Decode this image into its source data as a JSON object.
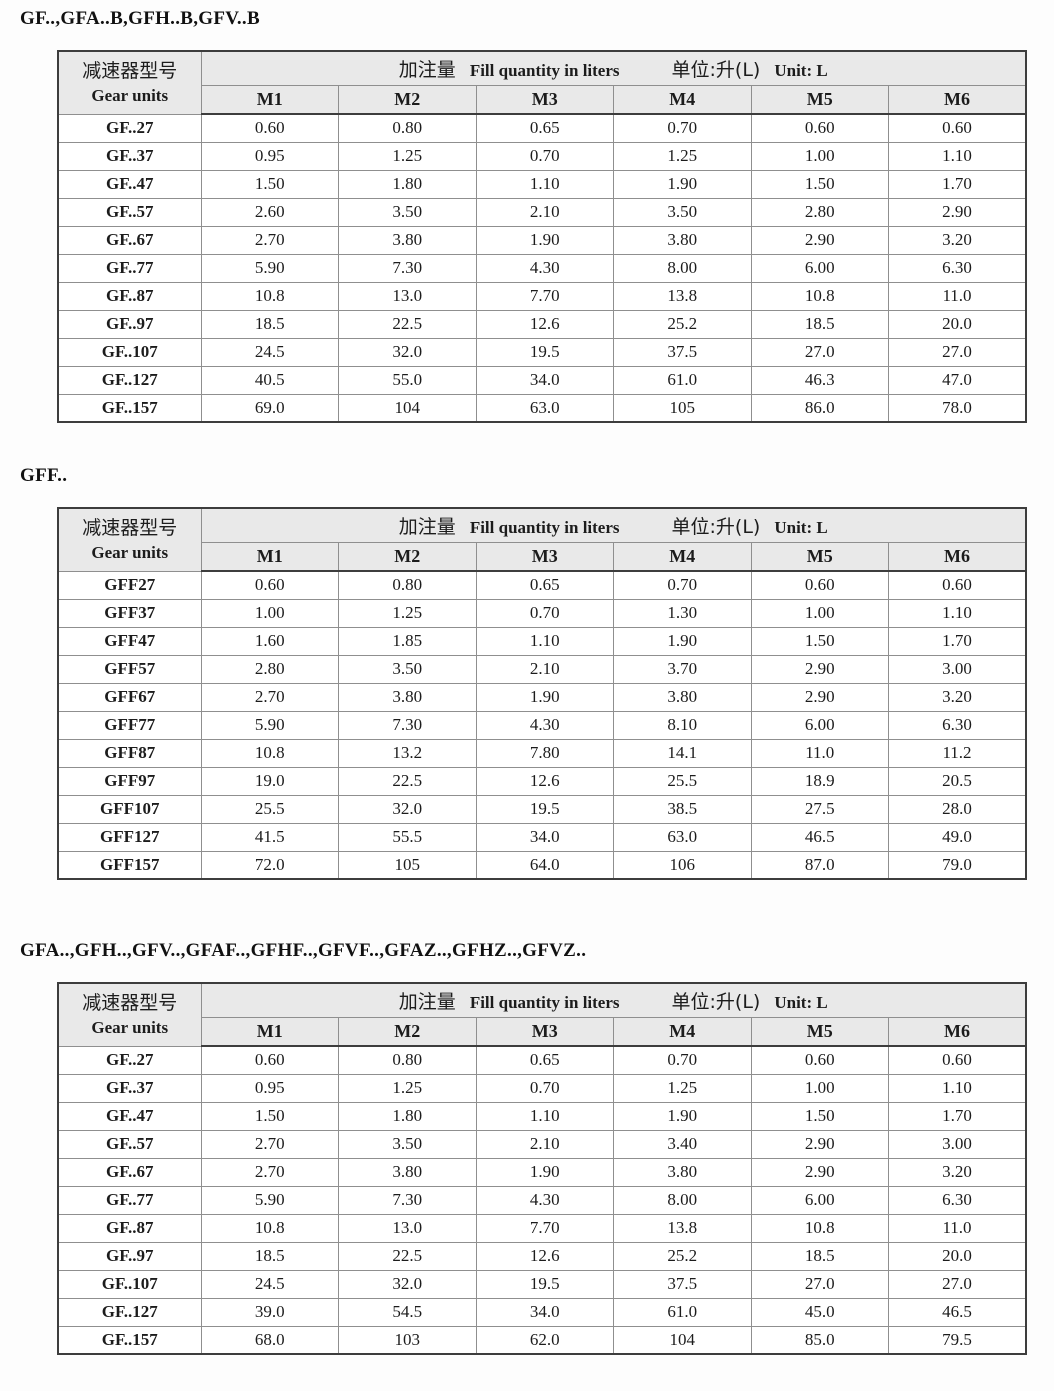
{
  "header": {
    "col1_zh": "减速器型号",
    "col1_en": "Gear units",
    "fill_zh": "加注量",
    "fill_en": "Fill quantity in liters",
    "unit_zh": "单位:升(L)",
    "unit_en": "Unit: L",
    "columns": [
      "M1",
      "M2",
      "M3",
      "M4",
      "M5",
      "M6"
    ]
  },
  "sections": [
    {
      "title": "GF..,GFA..B,GFH..B,GFV..B",
      "rows": [
        {
          "model": "GF..27",
          "values": [
            "0.60",
            "0.80",
            "0.65",
            "0.70",
            "0.60",
            "0.60"
          ]
        },
        {
          "model": "GF..37",
          "values": [
            "0.95",
            "1.25",
            "0.70",
            "1.25",
            "1.00",
            "1.10"
          ]
        },
        {
          "model": "GF..47",
          "values": [
            "1.50",
            "1.80",
            "1.10",
            "1.90",
            "1.50",
            "1.70"
          ]
        },
        {
          "model": "GF..57",
          "values": [
            "2.60",
            "3.50",
            "2.10",
            "3.50",
            "2.80",
            "2.90"
          ]
        },
        {
          "model": "GF..67",
          "values": [
            "2.70",
            "3.80",
            "1.90",
            "3.80",
            "2.90",
            "3.20"
          ]
        },
        {
          "model": "GF..77",
          "values": [
            "5.90",
            "7.30",
            "4.30",
            "8.00",
            "6.00",
            "6.30"
          ]
        },
        {
          "model": "GF..87",
          "values": [
            "10.8",
            "13.0",
            "7.70",
            "13.8",
            "10.8",
            "11.0"
          ]
        },
        {
          "model": "GF..97",
          "values": [
            "18.5",
            "22.5",
            "12.6",
            "25.2",
            "18.5",
            "20.0"
          ]
        },
        {
          "model": "GF..107",
          "values": [
            "24.5",
            "32.0",
            "19.5",
            "37.5",
            "27.0",
            "27.0"
          ]
        },
        {
          "model": "GF..127",
          "values": [
            "40.5",
            "55.0",
            "34.0",
            "61.0",
            "46.3",
            "47.0"
          ]
        },
        {
          "model": "GF..157",
          "values": [
            "69.0",
            "104",
            "63.0",
            "105",
            "86.0",
            "78.0"
          ]
        }
      ]
    },
    {
      "title": "GFF..",
      "rows": [
        {
          "model": "GFF27",
          "values": [
            "0.60",
            "0.80",
            "0.65",
            "0.70",
            "0.60",
            "0.60"
          ]
        },
        {
          "model": "GFF37",
          "values": [
            "1.00",
            "1.25",
            "0.70",
            "1.30",
            "1.00",
            "1.10"
          ]
        },
        {
          "model": "GFF47",
          "values": [
            "1.60",
            "1.85",
            "1.10",
            "1.90",
            "1.50",
            "1.70"
          ]
        },
        {
          "model": "GFF57",
          "values": [
            "2.80",
            "3.50",
            "2.10",
            "3.70",
            "2.90",
            "3.00"
          ]
        },
        {
          "model": "GFF67",
          "values": [
            "2.70",
            "3.80",
            "1.90",
            "3.80",
            "2.90",
            "3.20"
          ]
        },
        {
          "model": "GFF77",
          "values": [
            "5.90",
            "7.30",
            "4.30",
            "8.10",
            "6.00",
            "6.30"
          ]
        },
        {
          "model": "GFF87",
          "values": [
            "10.8",
            "13.2",
            "7.80",
            "14.1",
            "11.0",
            "11.2"
          ]
        },
        {
          "model": "GFF97",
          "values": [
            "19.0",
            "22.5",
            "12.6",
            "25.5",
            "18.9",
            "20.5"
          ]
        },
        {
          "model": "GFF107",
          "values": [
            "25.5",
            "32.0",
            "19.5",
            "38.5",
            "27.5",
            "28.0"
          ]
        },
        {
          "model": "GFF127",
          "values": [
            "41.5",
            "55.5",
            "34.0",
            "63.0",
            "46.5",
            "49.0"
          ]
        },
        {
          "model": "GFF157",
          "values": [
            "72.0",
            "105",
            "64.0",
            "106",
            "87.0",
            "79.0"
          ]
        }
      ]
    },
    {
      "title": "GFA..,GFH..,GFV..,GFAF..,GFHF..,GFVF..,GFAZ..,GFHZ..,GFVZ..",
      "rows": [
        {
          "model": "GF..27",
          "values": [
            "0.60",
            "0.80",
            "0.65",
            "0.70",
            "0.60",
            "0.60"
          ]
        },
        {
          "model": "GF..37",
          "values": [
            "0.95",
            "1.25",
            "0.70",
            "1.25",
            "1.00",
            "1.10"
          ]
        },
        {
          "model": "GF..47",
          "values": [
            "1.50",
            "1.80",
            "1.10",
            "1.90",
            "1.50",
            "1.70"
          ]
        },
        {
          "model": "GF..57",
          "values": [
            "2.70",
            "3.50",
            "2.10",
            "3.40",
            "2.90",
            "3.00"
          ]
        },
        {
          "model": "GF..67",
          "values": [
            "2.70",
            "3.80",
            "1.90",
            "3.80",
            "2.90",
            "3.20"
          ]
        },
        {
          "model": "GF..77",
          "values": [
            "5.90",
            "7.30",
            "4.30",
            "8.00",
            "6.00",
            "6.30"
          ]
        },
        {
          "model": "GF..87",
          "values": [
            "10.8",
            "13.0",
            "7.70",
            "13.8",
            "10.8",
            "11.0"
          ]
        },
        {
          "model": "GF..97",
          "values": [
            "18.5",
            "22.5",
            "12.6",
            "25.2",
            "18.5",
            "20.0"
          ]
        },
        {
          "model": "GF..107",
          "values": [
            "24.5",
            "32.0",
            "19.5",
            "37.5",
            "27.0",
            "27.0"
          ]
        },
        {
          "model": "GF..127",
          "values": [
            "39.0",
            "54.5",
            "34.0",
            "61.0",
            "45.0",
            "46.5"
          ]
        },
        {
          "model": "GF..157",
          "values": [
            "68.0",
            "103",
            "62.0",
            "104",
            "85.0",
            "79.5"
          ]
        }
      ]
    }
  ],
  "colors": {
    "header_bg": "#e9e9e9",
    "cell_bg": "#ffffff",
    "border_heavy": "#3d3d3d",
    "border_light": "#8f8f8f",
    "text": "#1c1c1c"
  }
}
